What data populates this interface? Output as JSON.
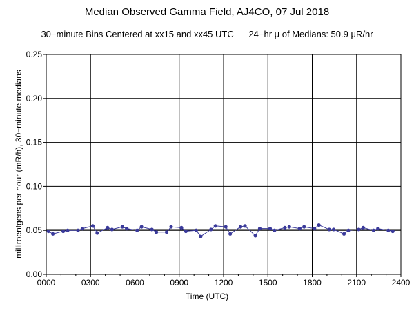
{
  "chart_data": {
    "type": "line",
    "title": "Median Observed Gamma Field, AJ4CO, 07 Jul 2018",
    "subtitle": "30−minute Bins Centered at xx15 and xx45 UTC      24−hr μ of Medians: 50.9 μR/hr",
    "xlabel": "Time (UTC)",
    "ylabel": "milliroentgens per hour (mR/h), 30−minute medians",
    "xlim": [
      0,
      2400
    ],
    "ylim": [
      0,
      0.25
    ],
    "x_ticks": [
      0,
      300,
      600,
      900,
      1200,
      1500,
      1800,
      2100,
      2400
    ],
    "x_tick_labels": [
      "0000",
      "0300",
      "0600",
      "0900",
      "1200",
      "1500",
      "1800",
      "2100",
      "2400"
    ],
    "y_ticks": [
      0,
      0.05,
      0.1,
      0.15,
      0.2,
      0.25
    ],
    "y_tick_labels": [
      "0.00",
      "0.05",
      "0.10",
      "0.15",
      "0.20",
      "0.25"
    ],
    "mean_line": 0.0509,
    "grid": true,
    "series": [
      {
        "x": [
          15,
          45,
          115,
          145,
          215,
          245,
          315,
          345,
          415,
          445,
          515,
          545,
          615,
          645,
          715,
          745,
          815,
          845,
          915,
          945,
          1015,
          1045,
          1115,
          1145,
          1215,
          1245,
          1315,
          1345,
          1415,
          1445,
          1515,
          1545,
          1615,
          1645,
          1715,
          1745,
          1815,
          1845,
          1915,
          1945,
          2015,
          2045,
          2115,
          2145,
          2215,
          2245,
          2315,
          2345
        ],
        "values": [
          0.049,
          0.046,
          0.049,
          0.05,
          0.05,
          0.052,
          0.055,
          0.047,
          0.053,
          0.051,
          0.054,
          0.052,
          0.05,
          0.054,
          0.051,
          0.048,
          0.048,
          0.054,
          0.053,
          0.049,
          0.05,
          0.043,
          0.051,
          0.055,
          0.054,
          0.046,
          0.054,
          0.055,
          0.044,
          0.052,
          0.052,
          0.05,
          0.053,
          0.054,
          0.052,
          0.054,
          0.052,
          0.056,
          0.051,
          0.051,
          0.046,
          0.05,
          0.051,
          0.053,
          0.05,
          0.052,
          0.05,
          0.049
        ],
        "color": "#3a3a9a"
      }
    ]
  }
}
